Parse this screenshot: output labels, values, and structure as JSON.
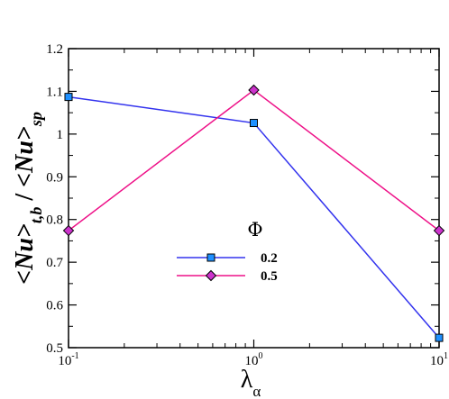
{
  "chart_data": {
    "type": "line",
    "xscale": "log",
    "x": [
      0.1,
      1,
      10
    ],
    "x_ticks": [
      {
        "base": "10",
        "exp": "-1"
      },
      {
        "base": "10",
        "exp": "0"
      },
      {
        "base": "10",
        "exp": "1"
      }
    ],
    "ylim": [
      0.5,
      1.2
    ],
    "y_ticks": [
      "0.5",
      "0.6",
      "0.7",
      "0.8",
      "0.9",
      "1",
      "1.1",
      "1.2"
    ],
    "ylabel": "<Nu>t,b / <Nu>sp",
    "ylabel_parts": {
      "main1": "<Nu>",
      "sub1": "t,b",
      "sep": " / ",
      "main2": "<Nu>",
      "sub2": "sp"
    },
    "xlabel": "λα",
    "xlabel_parts": {
      "main": "λ",
      "sub": "α"
    },
    "legend": {
      "title": "Φ",
      "placement": "center"
    },
    "series": [
      {
        "name": "0.2",
        "values": [
          1.087,
          1.026,
          0.523
        ],
        "color": "#3333ee",
        "marker": "square",
        "marker_color": "#1e90ff"
      },
      {
        "name": "0.5",
        "values": [
          0.774,
          1.103,
          0.774
        ],
        "color": "#ee1188",
        "marker": "diamond",
        "marker_color": "#cc33cc"
      }
    ],
    "grid": false
  }
}
